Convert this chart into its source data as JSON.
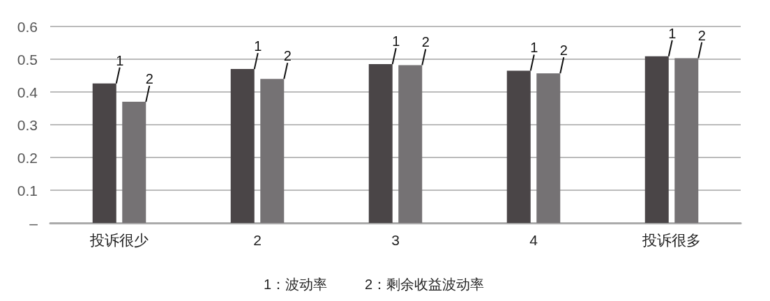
{
  "chart_data": {
    "type": "bar",
    "categories": [
      "投诉很少",
      "2",
      "3",
      "4",
      "投诉很多"
    ],
    "series": [
      {
        "name": "1",
        "color": "#4a4547",
        "values": [
          0.426,
          0.47,
          0.485,
          0.465,
          0.509
        ]
      },
      {
        "name": "2",
        "color": "#757274",
        "values": [
          0.37,
          0.44,
          0.482,
          0.457,
          0.503
        ]
      }
    ],
    "ylim": [
      0,
      0.6
    ],
    "yticks": [
      {
        "value": 0,
        "label": "–"
      },
      0.1,
      0.2,
      0.3,
      0.4,
      0.5,
      0.6
    ],
    "grid": "y",
    "legend": false,
    "annotations": [
      "1：波动率",
      "2：剩余收益波动率"
    ]
  }
}
